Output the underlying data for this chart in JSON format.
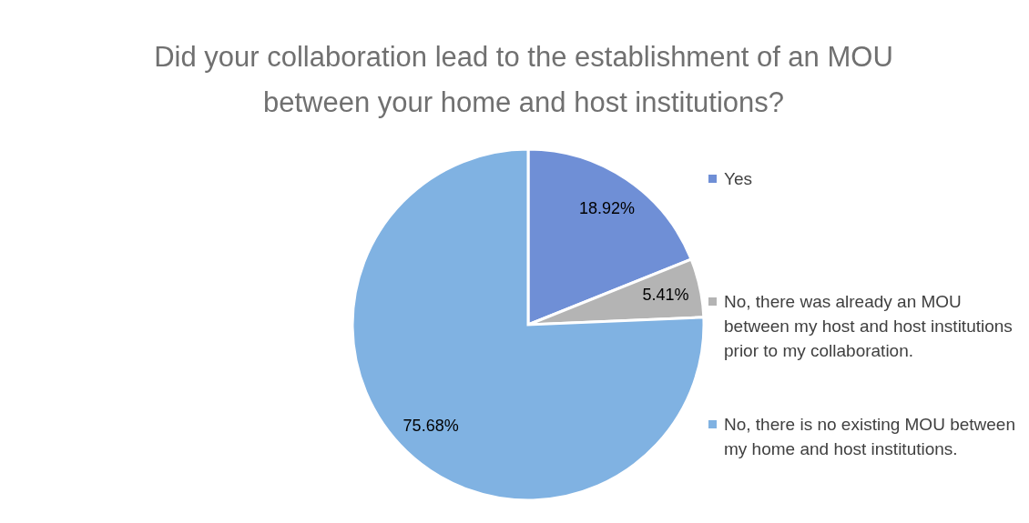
{
  "chart_data": {
    "type": "pie",
    "title": "Did your collaboration lead to the establishment of an MOU between your home and host institutions?",
    "categories": [
      "Yes",
      "No, there was already an MOU between my host and host institutions prior to my collaboration.",
      "No, there is no existing MOU between my home and host institutions."
    ],
    "values": [
      18.92,
      5.41,
      75.68
    ],
    "value_labels": [
      "18.92%",
      "5.41%",
      "75.68%"
    ],
    "colors": [
      "#6f8fd6",
      "#b4b4b4",
      "#80b2e2"
    ],
    "legend": "right"
  }
}
